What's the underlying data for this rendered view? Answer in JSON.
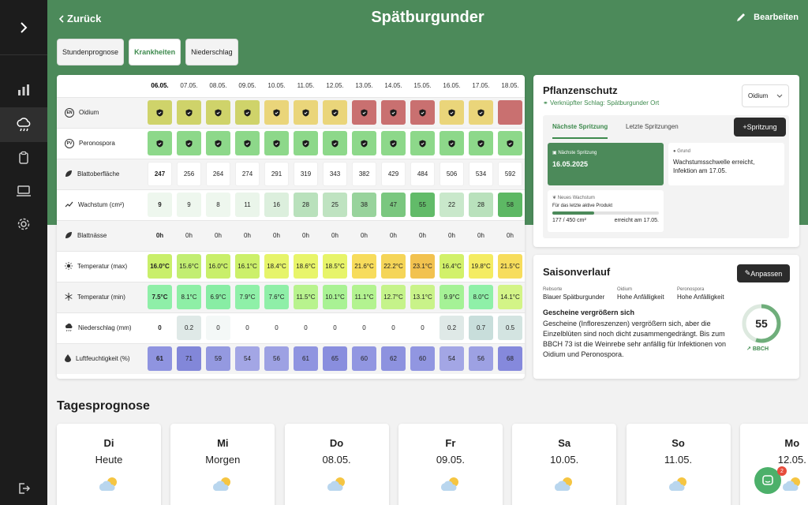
{
  "header": {
    "back_label": "Zurück",
    "title": "Spätburgunder",
    "edit_label": "Bearbeiten"
  },
  "tabs": [
    {
      "label": "Stundenprognose",
      "active": false
    },
    {
      "label": "Krankheiten",
      "active": true
    },
    {
      "label": "Niederschlag",
      "active": false
    }
  ],
  "dates": [
    "06.05.",
    "07.05.",
    "08.05.",
    "09.05.",
    "10.05.",
    "11.05.",
    "12.05.",
    "13.05.",
    "14.05.",
    "15.05.",
    "16.05.",
    "17.05.",
    "18.05."
  ],
  "rows": [
    {
      "label": "Oidium",
      "icon": "EN",
      "icon_name": "oidium-badge-icon",
      "values": [
        "",
        "",
        "",
        "",
        "",
        "",
        "",
        "",
        "",
        "",
        "",
        "",
        ""
      ],
      "shield": [
        true,
        true,
        true,
        true,
        true,
        true,
        true,
        true,
        true,
        true,
        true,
        true,
        false
      ],
      "colors": [
        "#cfd36a",
        "#cfd36a",
        "#cfd36a",
        "#cfd36a",
        "#ead57a",
        "#ead57a",
        "#ead57a",
        "#c97070",
        "#c97070",
        "#c97070",
        "#ead57a",
        "#ead57a",
        "#c97070"
      ]
    },
    {
      "label": "Peronospora",
      "icon": "PV",
      "icon_name": "peronospora-badge-icon",
      "values": [
        "",
        "",
        "",
        "",
        "",
        "",
        "",
        "",
        "",
        "",
        "",
        "",
        ""
      ],
      "shield": [
        true,
        true,
        true,
        true,
        true,
        true,
        true,
        true,
        true,
        true,
        true,
        true,
        true
      ],
      "colors": [
        "#8dd88a",
        "#8dd88a",
        "#8dd88a",
        "#8dd88a",
        "#8dd88a",
        "#8dd88a",
        "#8dd88a",
        "#8dd88a",
        "#8dd88a",
        "#8dd88a",
        "#8dd88a",
        "#8dd88a",
        "#8dd88a"
      ]
    },
    {
      "label": "Blattoberfläche",
      "icon": "leaf",
      "icon_name": "leaf-icon",
      "values": [
        "247",
        "256",
        "264",
        "274",
        "291",
        "319",
        "343",
        "382",
        "429",
        "484",
        "506",
        "534",
        "592"
      ],
      "colors": [
        "white",
        "white",
        "white",
        "white",
        "white",
        "white",
        "white",
        "white",
        "white",
        "white",
        "white",
        "white",
        "white"
      ]
    },
    {
      "label": "Wachstum (cm²)",
      "icon": "trend",
      "icon_name": "trend-up-icon",
      "values": [
        "9",
        "9",
        "8",
        "11",
        "16",
        "28",
        "25",
        "38",
        "47",
        "55",
        "22",
        "28",
        "58"
      ],
      "colors": [
        "#eef7ee",
        "#eef7ee",
        "#eef7ee",
        "#eaf5ea",
        "#dcefdd",
        "#b9e1bc",
        "#bfe3c1",
        "#98d39c",
        "#7ac77f",
        "#62bb69",
        "#c9e8cb",
        "#b9e1bc",
        "#5db864"
      ]
    },
    {
      "label": "Blattnässe",
      "icon": "leaf",
      "icon_name": "leaf-wet-icon",
      "values": [
        "0h",
        "0h",
        "0h",
        "0h",
        "0h",
        "0h",
        "0h",
        "0h",
        "0h",
        "0h",
        "0h",
        "0h",
        "0h"
      ],
      "colors": [
        "none",
        "none",
        "none",
        "none",
        "none",
        "none",
        "none",
        "none",
        "none",
        "none",
        "none",
        "none",
        "none"
      ]
    },
    {
      "label": "Temperatur (max)",
      "icon": "sun",
      "icon_name": "sun-icon",
      "values": [
        "16.0°C",
        "15.6°C",
        "16.0°C",
        "16.1°C",
        "18.4°C",
        "18.6°C",
        "18.5°C",
        "21.6°C",
        "22.2°C",
        "23.1°C",
        "16.4°C",
        "19.8°C",
        "21.5°C"
      ],
      "colors": [
        "#c9ef6a",
        "#c2ee72",
        "#c9ef6a",
        "#ccf06a",
        "#e6f46a",
        "#e8f56a",
        "#e7f46a",
        "#f7dc5c",
        "#f5d558",
        "#f2c24f",
        "#d2f16a",
        "#f4ec62",
        "#f7dd5c"
      ]
    },
    {
      "label": "Temperatur (min)",
      "icon": "snow",
      "icon_name": "snowflake-icon",
      "values": [
        "7.5°C",
        "8.1°C",
        "6.9°C",
        "7.9°C",
        "7.6°C",
        "11.5°C",
        "10.1°C",
        "11.1°C",
        "12.7°C",
        "13.1°C",
        "9.9°C",
        "8.0°C",
        "14.1°C"
      ],
      "colors": [
        "#8fefa8",
        "#8eefa6",
        "#88eda4",
        "#8ff0a8",
        "#8fefa8",
        "#b8f38e",
        "#a9f294",
        "#b3f390",
        "#c5f38a",
        "#c9f389",
        "#a5f296",
        "#8ff0a8",
        "#d3f487"
      ]
    },
    {
      "label": "Niederschlag (mm)",
      "icon": "rain",
      "icon_name": "rain-cloud-icon",
      "values": [
        "0",
        "0.2",
        "0",
        "0",
        "0",
        "0",
        "0",
        "0",
        "0",
        "0",
        "0.2",
        "0.7",
        "0.5"
      ],
      "colors": [
        "none",
        "#dfe9e7",
        "#f4f8f7",
        "none",
        "none",
        "none",
        "none",
        "none",
        "none",
        "none",
        "#dfe9e7",
        "#c8dedb",
        "#d3e4e1"
      ]
    },
    {
      "label": "Luftfeuchtigkeit (%)",
      "icon": "drop",
      "icon_name": "drop-icon",
      "values": [
        "61",
        "71",
        "59",
        "54",
        "56",
        "61",
        "65",
        "60",
        "62",
        "60",
        "54",
        "56",
        "68"
      ],
      "colors": [
        "#8f94e0",
        "#8287d9",
        "#9499e0",
        "#a3a6e5",
        "#9da1e3",
        "#8f94e0",
        "#898ede",
        "#9196e1",
        "#8d92df",
        "#9196e1",
        "#a3a6e5",
        "#9da1e3",
        "#8589dc"
      ]
    }
  ],
  "pflanzenschutz": {
    "title": "Pflanzenschutz",
    "link": "Verknüpfter Schlag: Spätburgunder Ort",
    "select_value": "Oidium",
    "tab_active": "Nächste Spritzung",
    "tab_other": "Letzte Spritzungen",
    "add_button": "Spritzung",
    "next_label": "Nächste Spritzung",
    "next_date": "16.05.2025",
    "grund_label": "Grund",
    "grund_text": "Wachstumsschwelle erreicht, Infektion am 17.05.",
    "nw_label": "Neues Wachstum",
    "nw_sub": "Für das letzte aktive Produkt",
    "nw_progress": 0.39,
    "nw_value": "177 / 450 cm²",
    "nw_reached": "erreicht am 17.05."
  },
  "saison": {
    "title": "Saisonverlauf",
    "button": "Anpassen",
    "cols": [
      {
        "label": "Rebsorte",
        "value": "Blauer Spätburgunder"
      },
      {
        "label": "Oidium",
        "value": "Hohe Anfälligkeit"
      },
      {
        "label": "Peronospora",
        "value": "Hohe Anfälligkeit"
      }
    ],
    "headline": "Gescheine vergrößern sich",
    "body": "Gescheine (Infloreszenzen) vergrößern sich, aber die Einzelblüten sind noch dicht zusammengedrängt. Bis zum BBCH 73 ist die Weinrebe sehr anfällig für Infektionen von Oidium und Peronospora.",
    "bbch_value": "55",
    "bbch_progress": 0.55,
    "bbch_label": "BBCH"
  },
  "tagesprognose": {
    "title": "Tagesprognose",
    "days": [
      {
        "name": "Di",
        "sub": "Heute"
      },
      {
        "name": "Mi",
        "sub": "Morgen"
      },
      {
        "name": "Do",
        "sub": "08.05."
      },
      {
        "name": "Fr",
        "sub": "09.05."
      },
      {
        "name": "Sa",
        "sub": "10.05."
      },
      {
        "name": "So",
        "sub": "11.05."
      },
      {
        "name": "Mo",
        "sub": "12.05."
      }
    ]
  },
  "chat": {
    "badge": "2"
  },
  "colors": {
    "brand_green": "#4c8a5a",
    "sidebar": "#1c1c1c",
    "dark_button": "#2b2b2b"
  }
}
